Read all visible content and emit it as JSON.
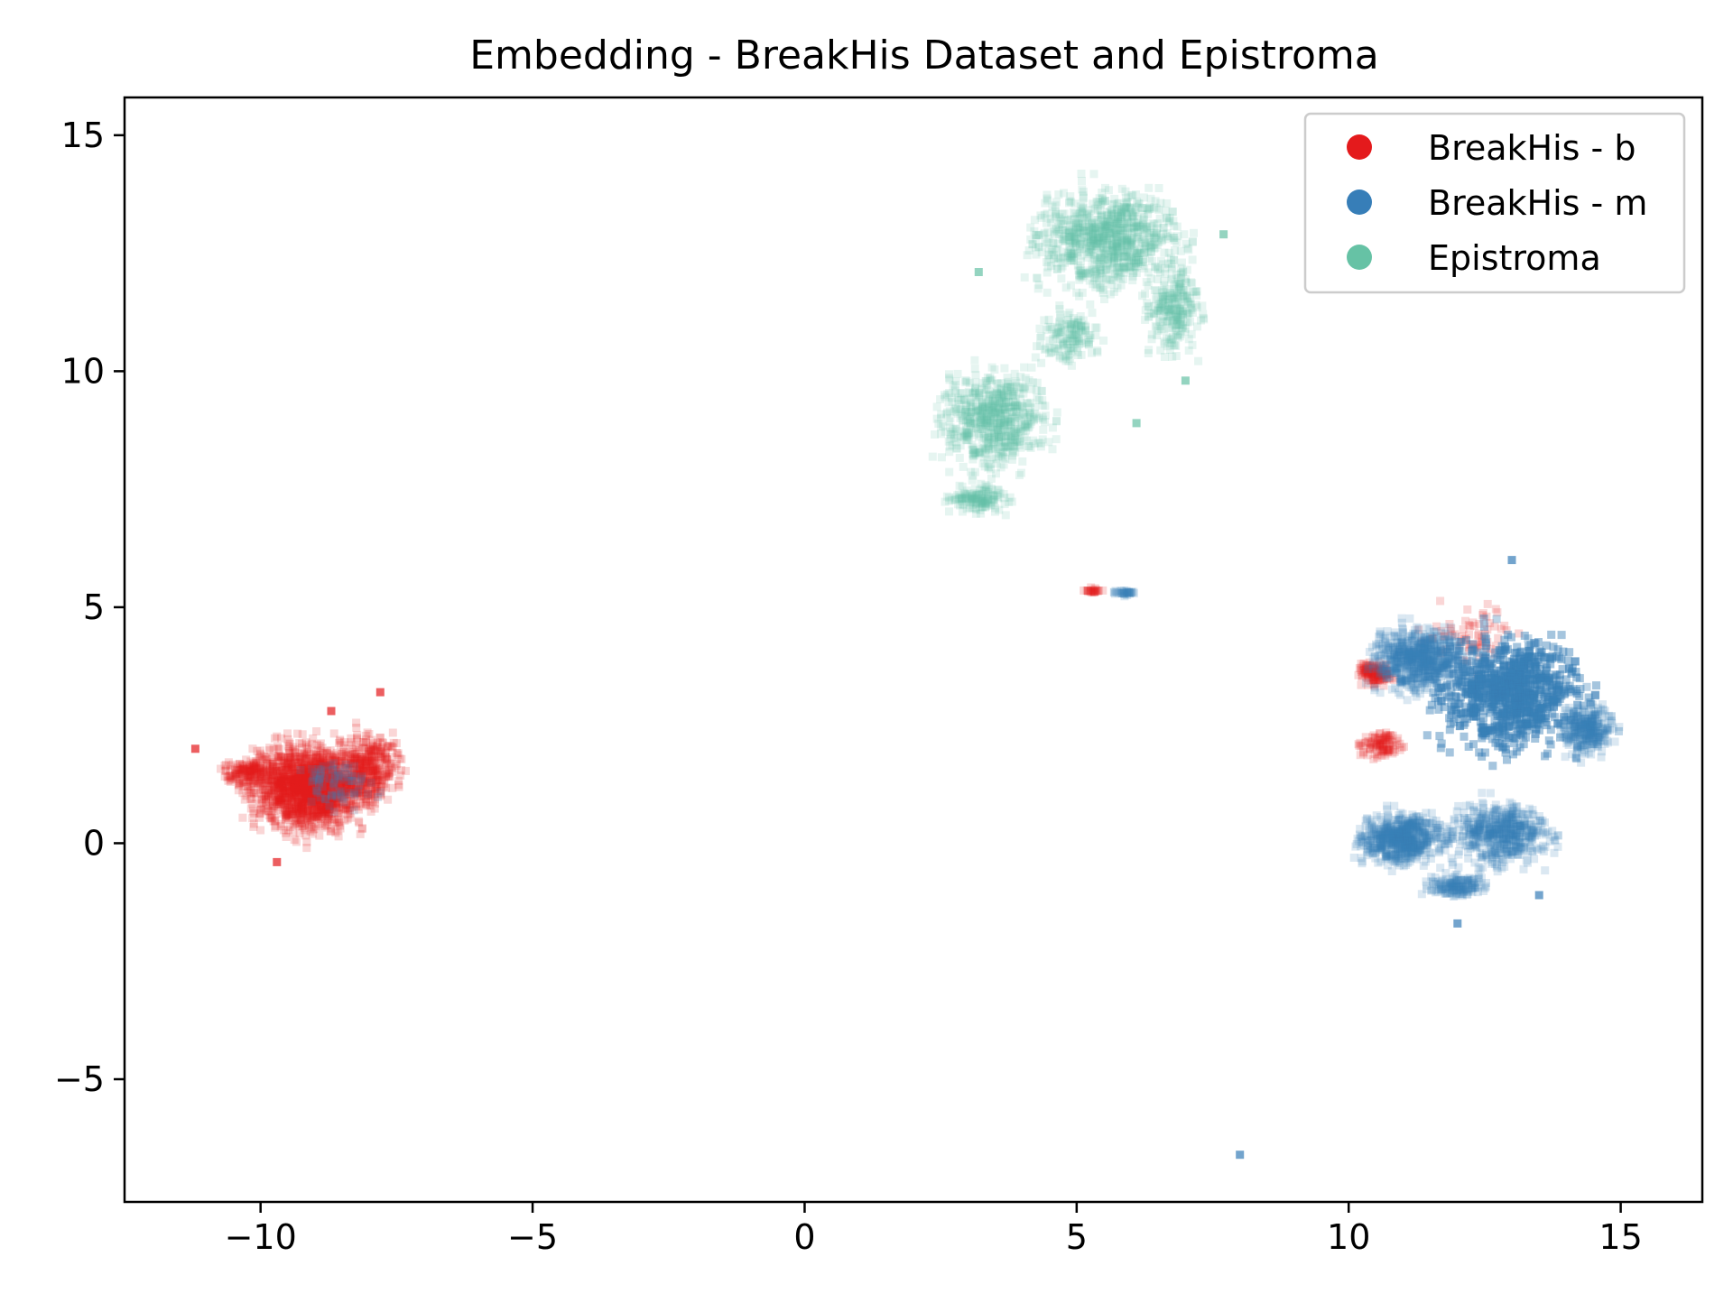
{
  "chart_data": {
    "type": "scatter",
    "title": "Embedding - BreakHis Dataset and Epistroma",
    "xlabel": "",
    "ylabel": "",
    "xlim": [
      -12.5,
      16.5
    ],
    "ylim": [
      -7.6,
      15.8
    ],
    "x_ticks": [
      -10,
      -5,
      0,
      5,
      10,
      15
    ],
    "x_tick_labels": [
      "−10",
      "−5",
      "0",
      "5",
      "10",
      "15"
    ],
    "y_ticks": [
      -5,
      0,
      5,
      10,
      15
    ],
    "y_tick_labels": [
      "−5",
      "0",
      "5",
      "10",
      "15"
    ],
    "grid": false,
    "legend_position": "top-right",
    "marker": "square",
    "series": [
      {
        "name": "BreakHis - b",
        "color": "#e41a1c",
        "alpha": 0.18,
        "clusters": [
          {
            "cx": -9.1,
            "cy": 1.2,
            "rx": 1.5,
            "ry": 1.3,
            "n": 1600
          },
          {
            "cx": -8.0,
            "cy": 1.6,
            "rx": 0.9,
            "ry": 1.1,
            "n": 350
          },
          {
            "cx": -10.2,
            "cy": 1.5,
            "rx": 0.7,
            "ry": 0.5,
            "n": 160
          },
          {
            "cx": 10.5,
            "cy": 3.6,
            "rx": 0.45,
            "ry": 0.35,
            "n": 140
          },
          {
            "cx": 10.6,
            "cy": 2.1,
            "rx": 0.55,
            "ry": 0.45,
            "n": 100
          },
          {
            "cx": 12.3,
            "cy": 4.4,
            "rx": 1.4,
            "ry": 1.2,
            "n": 70
          },
          {
            "cx": 5.3,
            "cy": 5.35,
            "rx": 0.25,
            "ry": 0.08,
            "n": 25
          }
        ],
        "points": [
          [
            -11.2,
            2.0
          ],
          [
            -8.7,
            2.8
          ],
          [
            -7.8,
            3.2
          ],
          [
            -9.7,
            -0.4
          ]
        ]
      },
      {
        "name": "BreakHis - m",
        "color": "#377eb8",
        "alpha": 0.18,
        "clusters": [
          {
            "cx": 13.0,
            "cy": 3.2,
            "rx": 1.9,
            "ry": 1.8,
            "n": 2600
          },
          {
            "cx": 11.3,
            "cy": 3.9,
            "rx": 1.2,
            "ry": 1.0,
            "n": 700
          },
          {
            "cx": 11.0,
            "cy": 0.1,
            "rx": 1.1,
            "ry": 0.8,
            "n": 650
          },
          {
            "cx": 12.8,
            "cy": 0.2,
            "rx": 1.3,
            "ry": 1.0,
            "n": 550
          },
          {
            "cx": 12.0,
            "cy": -0.9,
            "rx": 0.8,
            "ry": 0.35,
            "n": 160
          },
          {
            "cx": 14.4,
            "cy": 2.4,
            "rx": 0.7,
            "ry": 0.8,
            "n": 300
          },
          {
            "cx": 5.9,
            "cy": 5.3,
            "rx": 0.35,
            "ry": 0.1,
            "n": 35
          },
          {
            "cx": -8.6,
            "cy": 1.3,
            "rx": 1.0,
            "ry": 0.8,
            "n": 80
          }
        ],
        "points": [
          [
            8.0,
            -6.6
          ],
          [
            13.0,
            6.0
          ],
          [
            12.0,
            -1.7
          ],
          [
            13.5,
            -1.1
          ]
        ]
      },
      {
        "name": "Epistroma",
        "color": "#66c2a5",
        "alpha": 0.16,
        "clusters": [
          {
            "cx": 5.6,
            "cy": 12.8,
            "rx": 1.9,
            "ry": 1.6,
            "n": 900
          },
          {
            "cx": 6.8,
            "cy": 11.3,
            "rx": 0.7,
            "ry": 1.4,
            "n": 250
          },
          {
            "cx": 3.5,
            "cy": 9.0,
            "rx": 1.4,
            "ry": 1.6,
            "n": 650
          },
          {
            "cx": 3.2,
            "cy": 7.3,
            "rx": 0.8,
            "ry": 0.45,
            "n": 150
          },
          {
            "cx": 4.9,
            "cy": 10.7,
            "rx": 0.8,
            "ry": 0.8,
            "n": 150
          }
        ],
        "points": [
          [
            3.2,
            12.1
          ],
          [
            6.1,
            8.9
          ],
          [
            7.0,
            9.8
          ],
          [
            7.7,
            12.9
          ]
        ]
      }
    ]
  }
}
